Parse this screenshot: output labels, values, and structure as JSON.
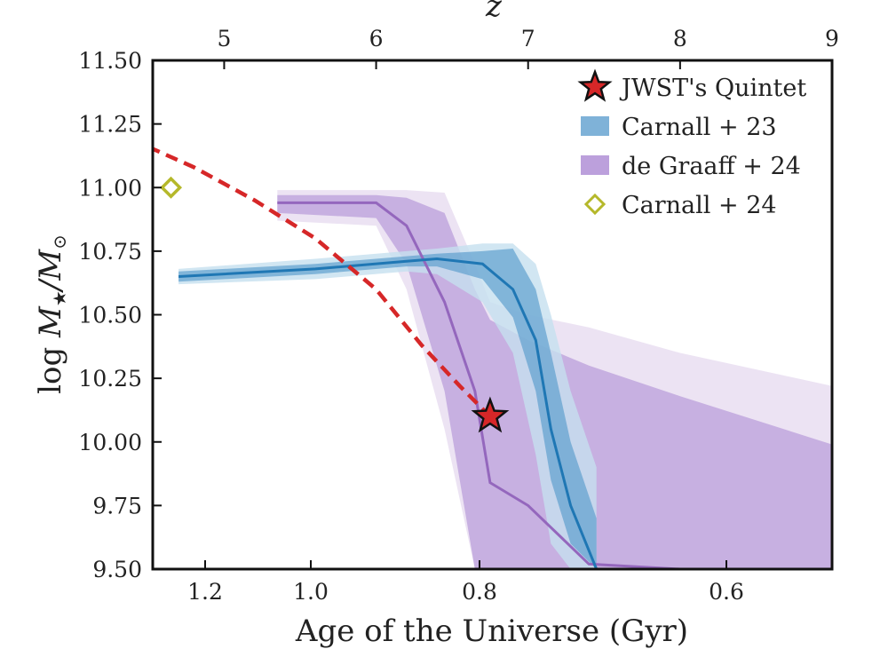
{
  "chart_data": {
    "type": "line",
    "title": "",
    "xlabel": "Age of the Universe (Gyr)",
    "ylabel": "log M★/M⊙",
    "top_xlabel": "z",
    "xlim_age_gyr": [
      1.3,
      0.51
    ],
    "top_x_range_z": [
      4.53,
      9.0
    ],
    "ylim": [
      9.5,
      11.5
    ],
    "y_ticks": [
      "11.50",
      "11.25",
      "11.00",
      "10.75",
      "10.50",
      "10.25",
      "10.00",
      "9.75",
      "9.50"
    ],
    "y_tick_values": [
      11.5,
      11.25,
      11.0,
      10.75,
      10.5,
      10.25,
      10.0,
      9.75,
      9.5
    ],
    "x_ticks": [
      "1.2",
      "1.0",
      "0.8",
      "0.6"
    ],
    "x_tick_values": [
      1.2,
      1.0,
      0.8,
      0.6
    ],
    "top_x_ticks": [
      "5",
      "6",
      "7",
      "8",
      "9"
    ],
    "top_x_tick_values": [
      5,
      6,
      7,
      8,
      9
    ],
    "grid": false,
    "legend_position": "top-right",
    "legend": [
      {
        "label": "JWST's Quintet",
        "marker": "star",
        "color": "#d62728"
      },
      {
        "label": "Carnall + 23",
        "marker": "patch",
        "color": "#7fb2d8"
      },
      {
        "label": "de Graaff + 24",
        "marker": "patch",
        "color": "#bca0dc"
      },
      {
        "label": "Carnall + 24",
        "marker": "diamond-open",
        "color": "#b5b82a"
      }
    ],
    "series": [
      {
        "name": "JWST's Quintet",
        "kind": "dashed-line-with-star",
        "color": "#d62728",
        "z": [
          4.5,
          4.8,
          5.2,
          5.6,
          6.0,
          6.3,
          6.55,
          6.75
        ],
        "values": [
          11.16,
          11.08,
          10.95,
          10.8,
          10.6,
          10.38,
          10.22,
          10.1
        ],
        "star": {
          "z": 6.75,
          "value": 10.1
        }
      },
      {
        "name": "Carnall + 23",
        "kind": "median-with-bands",
        "color": "#1f77b4",
        "band_colors": [
          "#c5e0ef",
          "#5fa0cf"
        ],
        "z": [
          4.7,
          5.6,
          6.2,
          6.4,
          6.7,
          6.9,
          7.05,
          7.15,
          7.28,
          7.45
        ],
        "values": [
          10.65,
          10.68,
          10.71,
          10.72,
          10.7,
          10.6,
          10.4,
          10.05,
          9.75,
          9.5
        ],
        "inner_lo": [
          10.63,
          10.66,
          10.69,
          10.69,
          10.64,
          10.49,
          10.2,
          9.85,
          9.6,
          9.5
        ],
        "inner_hi": [
          10.67,
          10.7,
          10.73,
          10.74,
          10.75,
          10.76,
          10.6,
          10.35,
          10.0,
          9.7
        ],
        "outer_lo": [
          10.62,
          10.64,
          10.67,
          10.66,
          10.55,
          10.35,
          9.95,
          9.6,
          9.5,
          9.5
        ],
        "outer_hi": [
          10.68,
          10.72,
          10.75,
          10.76,
          10.78,
          10.78,
          10.7,
          10.5,
          10.2,
          9.9
        ]
      },
      {
        "name": "de Graaff + 24",
        "kind": "median-with-bands",
        "color": "#9467bd",
        "band_colors": [
          "#e7dcf0",
          "#b89ad8"
        ],
        "z": [
          5.35,
          6.0,
          6.2,
          6.45,
          6.65,
          6.75,
          7.0,
          7.4,
          8.0,
          9.0
        ],
        "values": [
          10.94,
          10.94,
          10.85,
          10.55,
          10.2,
          9.84,
          9.75,
          9.52,
          9.5,
          9.5
        ],
        "inner_lo": [
          10.9,
          10.88,
          10.7,
          10.2,
          9.5,
          9.5,
          9.5,
          9.5,
          9.5,
          9.5
        ],
        "inner_hi": [
          10.97,
          10.97,
          10.96,
          10.9,
          10.6,
          10.48,
          10.4,
          10.3,
          10.18,
          9.99
        ],
        "outer_lo": [
          10.87,
          10.85,
          10.6,
          10.05,
          9.5,
          9.5,
          9.5,
          9.5,
          9.5,
          9.5
        ],
        "outer_hi": [
          10.99,
          10.99,
          10.99,
          10.98,
          10.7,
          10.55,
          10.5,
          10.45,
          10.35,
          10.22
        ]
      },
      {
        "name": "Carnall + 24",
        "kind": "marker",
        "marker": "diamond-open",
        "color": "#b5b82a",
        "z": [
          4.65
        ],
        "values": [
          11.0
        ]
      }
    ]
  }
}
